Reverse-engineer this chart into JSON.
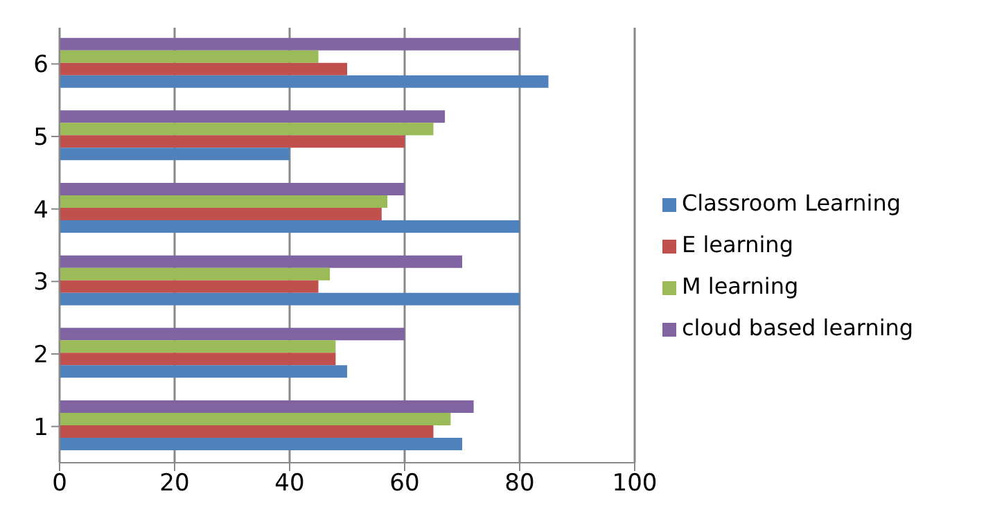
{
  "chart_data": {
    "type": "bar",
    "orientation": "horizontal",
    "categories": [
      "6",
      "5",
      "4",
      "3",
      "2",
      "1"
    ],
    "series": [
      {
        "name": "cloud based learning",
        "color": "#8064a2",
        "values": [
          80,
          67,
          60,
          70,
          60,
          72
        ]
      },
      {
        "name": "M learning",
        "color": "#9bbb59",
        "values": [
          45,
          65,
          57,
          47,
          48,
          68
        ]
      },
      {
        "name": "E learning",
        "color": "#c0504d",
        "values": [
          50,
          60,
          56,
          45,
          48,
          65
        ]
      },
      {
        "name": "Classroom Learning",
        "color": "#4f81bd",
        "values": [
          85,
          40,
          80,
          80,
          50,
          70
        ]
      }
    ],
    "xlim": [
      0,
      100
    ],
    "xticks": [
      0,
      20,
      40,
      60,
      80,
      100
    ],
    "grid": "x",
    "legend": "right"
  }
}
